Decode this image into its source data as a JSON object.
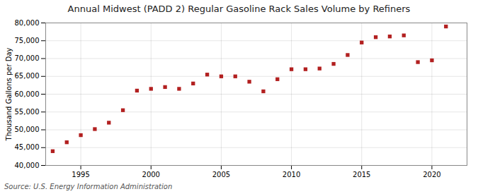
{
  "chart_data": {
    "type": "scatter",
    "title": "Annual Midwest (PADD 2) Regular Gasoline Rack Sales Volume by Refiners",
    "ylabel": "Thousand Gallons per Day",
    "source": "Source: U.S. Energy Information Administration",
    "x": [
      1993,
      1994,
      1995,
      1996,
      1997,
      1998,
      1999,
      2000,
      2001,
      2002,
      2003,
      2004,
      2005,
      2006,
      2007,
      2008,
      2009,
      2010,
      2011,
      2012,
      2013,
      2014,
      2015,
      2016,
      2017,
      2018,
      2019,
      2020,
      2021
    ],
    "values": [
      44000,
      46500,
      48500,
      50200,
      52000,
      55500,
      61000,
      61500,
      62000,
      61500,
      63000,
      65500,
      65000,
      65000,
      63500,
      60800,
      64200,
      67000,
      67000,
      67200,
      68500,
      71000,
      74500,
      76000,
      76200,
      76500,
      69000,
      69500,
      79000
    ],
    "color": "#b22020",
    "marker": "square",
    "xlim": [
      1992.5,
      2022.5
    ],
    "xticks": [
      1995,
      2000,
      2005,
      2010,
      2015,
      2020
    ],
    "ylim": [
      40000,
      80000
    ],
    "yticks": [
      {
        "value": 40000,
        "label": "40,000"
      },
      {
        "value": 45000,
        "label": "45,000"
      },
      {
        "value": 50000,
        "label": "50,000"
      },
      {
        "value": 55000,
        "label": "55,000"
      },
      {
        "value": 60000,
        "label": "60,000"
      },
      {
        "value": 65000,
        "label": "65,000"
      },
      {
        "value": 70000,
        "label": "70,000"
      },
      {
        "value": 75000,
        "label": "75,000"
      },
      {
        "value": 80000,
        "label": "80,000"
      }
    ],
    "grid": true
  }
}
